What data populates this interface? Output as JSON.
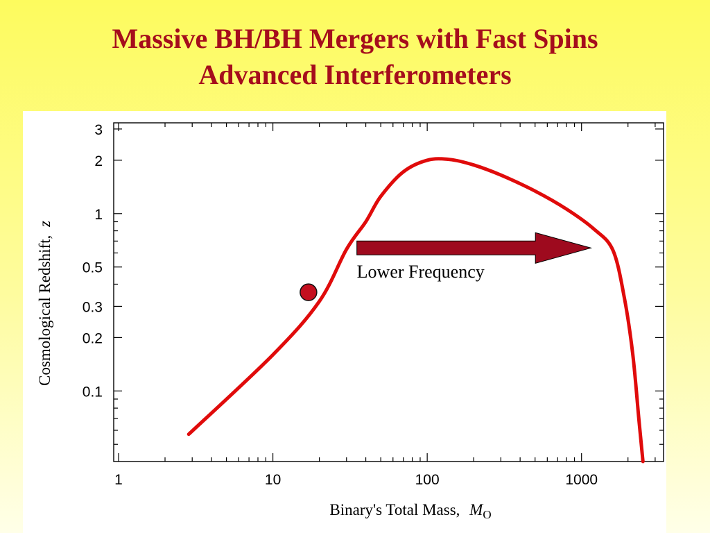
{
  "slide": {
    "title_line1": "Massive BH/BH Mergers with Fast Spins",
    "title_line2": "Advanced Interferometers"
  },
  "colors": {
    "title": "#a50d1c",
    "curve": "#e00b0b",
    "arrow": "#9e0a1e",
    "marker": "#c40f1f"
  },
  "chart_data": {
    "type": "line",
    "xlabel": "Binary's Total Mass,",
    "xlabel_unit": "M",
    "xlabel_unit_sub": "O",
    "ylabel": "Cosmological Redshift,",
    "ylabel_var": "z",
    "xscale": "log",
    "yscale": "log",
    "xlim": [
      0.93,
      3400
    ],
    "ylim": [
      0.04,
      3.25
    ],
    "xticks": [
      1,
      10,
      100,
      1000
    ],
    "xtick_labels": [
      "1",
      "10",
      "100",
      "1000"
    ],
    "yticks": [
      0.1,
      0.2,
      0.3,
      0.5,
      1,
      2,
      3
    ],
    "ytick_labels": [
      "0.1",
      "0.2",
      "0.3",
      "0.5",
      "1",
      "2",
      "3"
    ],
    "grid": false,
    "series": [
      {
        "x": [
          2.85,
          10,
          20,
          30,
          40,
          50,
          70,
          100,
          140,
          200,
          300,
          500,
          800,
          1200,
          1600,
          1900,
          2150,
          2350,
          2500
        ],
        "y": [
          0.057,
          0.16,
          0.32,
          0.63,
          0.9,
          1.25,
          1.72,
          2.0,
          2.02,
          1.88,
          1.65,
          1.34,
          1.06,
          0.82,
          0.62,
          0.33,
          0.16,
          0.07,
          0.04
        ]
      }
    ],
    "marker": {
      "x": 17,
      "y": 0.36
    },
    "arrow": {
      "x_from": 35,
      "x_to": 1150,
      "y": 0.64
    },
    "annotations": [
      {
        "text": "Lower Frequency",
        "x": 35,
        "y": 0.46
      }
    ]
  }
}
